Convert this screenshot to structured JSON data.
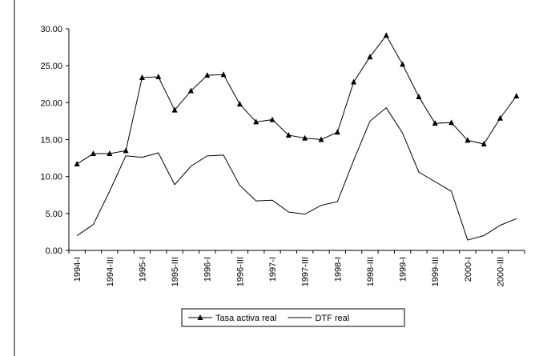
{
  "chart_data": {
    "type": "line",
    "categories": [
      "1994-I",
      null,
      "1994-III",
      null,
      "1995-I",
      null,
      "1995-III",
      null,
      "1996-I",
      null,
      "1996-III",
      null,
      "1997-I",
      null,
      "1997-III",
      null,
      "1998-I",
      null,
      "1998-III",
      null,
      "1999-I",
      null,
      "1999-III",
      null,
      "2000-I",
      null,
      "2000-III",
      null
    ],
    "series": [
      {
        "name": "Tasa activa real",
        "color": "#000000",
        "marker": "triangle",
        "values": [
          11.7,
          13.1,
          13.1,
          13.5,
          23.4,
          23.5,
          19.0,
          21.6,
          23.7,
          23.8,
          19.8,
          17.4,
          17.7,
          15.6,
          15.2,
          15.0,
          16.0,
          22.8,
          26.2,
          29.1,
          25.2,
          20.8,
          17.2,
          17.3,
          14.9,
          14.4,
          17.9,
          20.9
        ]
      },
      {
        "name": "DTF real",
        "color": "#000000",
        "marker": "none",
        "values": [
          2.0,
          3.5,
          8.0,
          12.8,
          12.6,
          13.2,
          8.9,
          11.4,
          12.8,
          12.9,
          8.8,
          6.7,
          6.8,
          5.2,
          4.9,
          6.1,
          6.6,
          12.2,
          17.5,
          19.3,
          15.9,
          10.6,
          9.3,
          8.0,
          1.4,
          2.0,
          3.4,
          4.3
        ]
      }
    ],
    "ylim": [
      0,
      30
    ],
    "yticks": [
      {
        "value": 0,
        "label": "0.00"
      },
      {
        "value": 5,
        "label": "5.00"
      },
      {
        "value": 10,
        "label": "10.00"
      },
      {
        "value": 15,
        "label": "15.00"
      },
      {
        "value": 20,
        "label": "20.00"
      },
      {
        "value": 25,
        "label": "25.00"
      },
      {
        "value": 30,
        "label": "30.00"
      }
    ],
    "legend": "bottom"
  }
}
